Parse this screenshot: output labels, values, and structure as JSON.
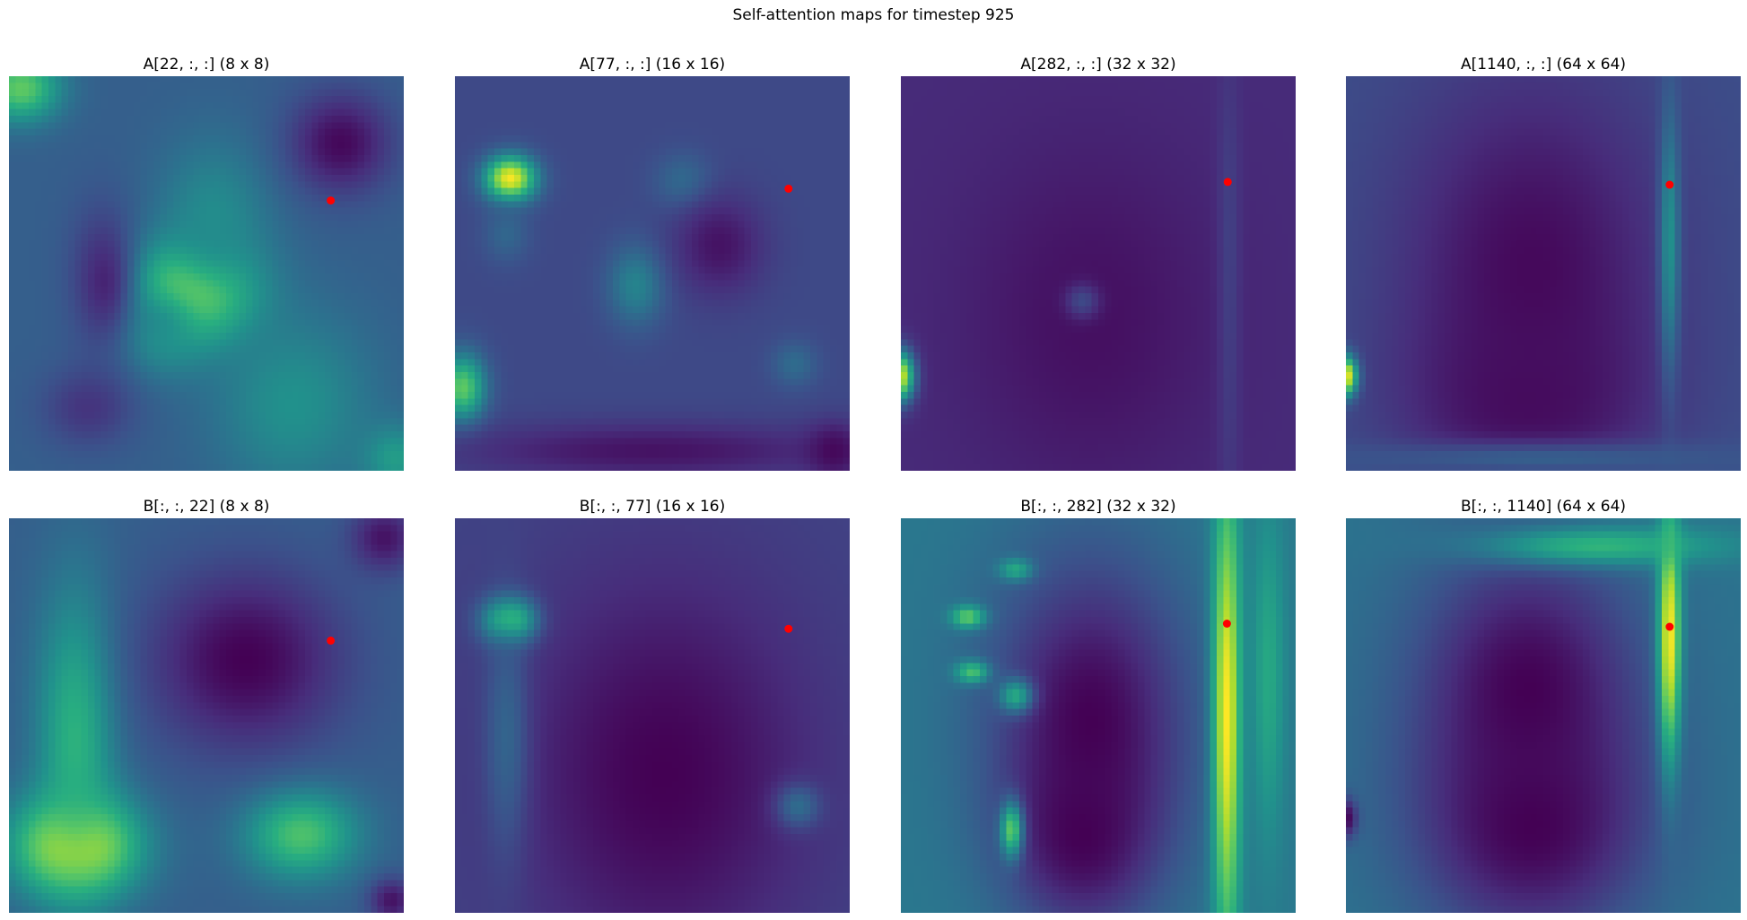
{
  "figure": {
    "suptitle": "Self-attention maps for timestep 925",
    "query_marker_color": "#ff0000",
    "colormap": "viridis",
    "colormap_stops": [
      "#440154",
      "#472d7b",
      "#3b528b",
      "#2c728e",
      "#21918c",
      "#28ae80",
      "#5ec962",
      "#addc30",
      "#fde725"
    ],
    "axes_visible": false
  },
  "chart_data": [
    {
      "type": "heatmap",
      "title": "A[22, :, :] (8 x 8)",
      "grid_size": [
        8,
        8
      ],
      "query_point": [
        0.815,
        0.315
      ],
      "background": 0.3,
      "blobs": [
        {
          "x": 0.46,
          "y": 0.55,
          "rx": 0.11,
          "ry": 0.09,
          "v": 1.0
        },
        {
          "x": 0.52,
          "y": 0.36,
          "rx": 0.1,
          "ry": 0.14,
          "v": 0.48
        },
        {
          "x": 0.38,
          "y": 0.64,
          "rx": 0.08,
          "ry": 0.08,
          "v": 0.5
        },
        {
          "x": 0.72,
          "y": 0.83,
          "rx": 0.14,
          "ry": 0.16,
          "v": 0.5
        },
        {
          "x": 0.03,
          "y": 0.03,
          "rx": 0.07,
          "ry": 0.06,
          "v": 0.75
        },
        {
          "x": 0.98,
          "y": 0.97,
          "rx": 0.06,
          "ry": 0.06,
          "v": 0.55
        },
        {
          "x": 0.84,
          "y": 0.17,
          "rx": 0.09,
          "ry": 0.09,
          "v": 0.02
        },
        {
          "x": 0.24,
          "y": 0.52,
          "rx": 0.06,
          "ry": 0.13,
          "v": 0.1
        },
        {
          "x": 0.2,
          "y": 0.84,
          "rx": 0.08,
          "ry": 0.07,
          "v": 0.15
        }
      ]
    },
    {
      "type": "heatmap",
      "title": "A[77, :, :] (16 x 16)",
      "grid_size": [
        16,
        16
      ],
      "query_point": [
        0.845,
        0.285
      ],
      "background": 0.22,
      "blobs": [
        {
          "x": 0.14,
          "y": 0.26,
          "rx": 0.045,
          "ry": 0.04,
          "v": 1.0
        },
        {
          "x": 0.46,
          "y": 0.53,
          "rx": 0.05,
          "ry": 0.07,
          "v": 0.45
        },
        {
          "x": 0.02,
          "y": 0.79,
          "rx": 0.04,
          "ry": 0.06,
          "v": 0.75
        },
        {
          "x": 0.58,
          "y": 0.27,
          "rx": 0.05,
          "ry": 0.05,
          "v": 0.36
        },
        {
          "x": 0.13,
          "y": 0.4,
          "rx": 0.04,
          "ry": 0.05,
          "v": 0.33
        },
        {
          "x": 0.86,
          "y": 0.73,
          "rx": 0.04,
          "ry": 0.04,
          "v": 0.35
        },
        {
          "x": 0.67,
          "y": 0.43,
          "rx": 0.08,
          "ry": 0.09,
          "v": 0.05
        },
        {
          "x": 0.5,
          "y": 0.95,
          "rx": 0.35,
          "ry": 0.05,
          "v": 0.05
        },
        {
          "x": 0.96,
          "y": 0.95,
          "rx": 0.05,
          "ry": 0.05,
          "v": 0.02
        }
      ]
    },
    {
      "type": "heatmap",
      "title": "A[282, :, :] (32 x 32)",
      "grid_size": [
        32,
        32
      ],
      "query_point": [
        0.828,
        0.268
      ],
      "background": 0.12,
      "blobs": [
        {
          "x": 0.0,
          "y": 0.76,
          "rx": 0.025,
          "ry": 0.045,
          "v": 1.0
        },
        {
          "x": 0.83,
          "y": 0.55,
          "rx": 0.02,
          "ry": 0.35,
          "v": 0.24
        },
        {
          "x": 0.48,
          "y": 0.62,
          "rx": 0.22,
          "ry": 0.3,
          "v": 0.04
        },
        {
          "x": 0.46,
          "y": 0.57,
          "rx": 0.03,
          "ry": 0.03,
          "v": 0.22
        }
      ]
    },
    {
      "type": "heatmap",
      "title": "A[1140, :, :] (64 x 64)",
      "grid_size": [
        64,
        64
      ],
      "query_point": [
        0.82,
        0.275
      ],
      "background": 0.24,
      "blobs": [
        {
          "x": 0.47,
          "y": 0.5,
          "rx": 0.24,
          "ry": 0.36,
          "v": 0.02
        },
        {
          "x": 0.46,
          "y": 0.82,
          "rx": 0.2,
          "ry": 0.16,
          "v": 0.03
        },
        {
          "x": 0.82,
          "y": 0.42,
          "rx": 0.018,
          "ry": 0.24,
          "v": 0.5
        },
        {
          "x": 0.0,
          "y": 0.76,
          "rx": 0.02,
          "ry": 0.035,
          "v": 1.0
        },
        {
          "x": 0.5,
          "y": 0.97,
          "rx": 0.4,
          "ry": 0.03,
          "v": 0.3
        }
      ]
    },
    {
      "type": "heatmap",
      "title": "B[:, :, 22] (8 x 8)",
      "grid_size": [
        8,
        8
      ],
      "query_point": [
        0.815,
        0.31
      ],
      "background": 0.3,
      "blobs": [
        {
          "x": 0.17,
          "y": 0.83,
          "rx": 0.11,
          "ry": 0.09,
          "v": 1.0
        },
        {
          "x": 0.17,
          "y": 0.55,
          "rx": 0.07,
          "ry": 0.26,
          "v": 0.65
        },
        {
          "x": 0.74,
          "y": 0.8,
          "rx": 0.1,
          "ry": 0.08,
          "v": 0.72
        },
        {
          "x": 0.6,
          "y": 0.36,
          "rx": 0.17,
          "ry": 0.16,
          "v": 0.0
        },
        {
          "x": 0.95,
          "y": 0.05,
          "rx": 0.06,
          "ry": 0.06,
          "v": 0.05
        },
        {
          "x": 0.97,
          "y": 0.97,
          "rx": 0.04,
          "ry": 0.04,
          "v": 0.05
        }
      ]
    },
    {
      "type": "heatmap",
      "title": "B[:, :, 77] (16 x 16)",
      "grid_size": [
        16,
        16
      ],
      "query_point": [
        0.845,
        0.28
      ],
      "background": 0.2,
      "blobs": [
        {
          "x": 0.14,
          "y": 0.26,
          "rx": 0.045,
          "ry": 0.04,
          "v": 1.0
        },
        {
          "x": 0.53,
          "y": 0.65,
          "rx": 0.26,
          "ry": 0.35,
          "v": 0.0
        },
        {
          "x": 0.13,
          "y": 0.55,
          "rx": 0.04,
          "ry": 0.22,
          "v": 0.32
        },
        {
          "x": 0.87,
          "y": 0.73,
          "rx": 0.04,
          "ry": 0.04,
          "v": 0.35
        }
      ]
    },
    {
      "type": "heatmap",
      "title": "B[:, :, 282] (32 x 32)",
      "grid_size": [
        32,
        32
      ],
      "query_point": [
        0.826,
        0.267
      ],
      "background": 0.4,
      "blobs": [
        {
          "x": 0.48,
          "y": 0.52,
          "rx": 0.18,
          "ry": 0.3,
          "v": 0.0
        },
        {
          "x": 0.46,
          "y": 0.8,
          "rx": 0.12,
          "ry": 0.15,
          "v": 0.0
        },
        {
          "x": 0.826,
          "y": 0.5,
          "rx": 0.025,
          "ry": 0.42,
          "v": 1.0
        },
        {
          "x": 0.93,
          "y": 0.4,
          "rx": 0.03,
          "ry": 0.3,
          "v": 0.6
        },
        {
          "x": 0.17,
          "y": 0.25,
          "rx": 0.03,
          "ry": 0.02,
          "v": 0.75
        },
        {
          "x": 0.18,
          "y": 0.39,
          "rx": 0.03,
          "ry": 0.02,
          "v": 0.7
        },
        {
          "x": 0.29,
          "y": 0.45,
          "rx": 0.03,
          "ry": 0.03,
          "v": 0.6
        },
        {
          "x": 0.29,
          "y": 0.13,
          "rx": 0.03,
          "ry": 0.02,
          "v": 0.6
        },
        {
          "x": 0.28,
          "y": 0.79,
          "rx": 0.02,
          "ry": 0.05,
          "v": 0.75
        }
      ]
    },
    {
      "type": "heatmap",
      "title": "B[:, :, 1140] (64 x 64)",
      "grid_size": [
        64,
        64
      ],
      "query_point": [
        0.82,
        0.275
      ],
      "background": 0.38,
      "blobs": [
        {
          "x": 0.46,
          "y": 0.44,
          "rx": 0.2,
          "ry": 0.26,
          "v": 0.0
        },
        {
          "x": 0.47,
          "y": 0.78,
          "rx": 0.2,
          "ry": 0.2,
          "v": 0.0
        },
        {
          "x": 0.82,
          "y": 0.3,
          "rx": 0.02,
          "ry": 0.22,
          "v": 1.0
        },
        {
          "x": 0.65,
          "y": 0.07,
          "rx": 0.22,
          "ry": 0.035,
          "v": 0.65
        },
        {
          "x": 0.0,
          "y": 0.76,
          "rx": 0.02,
          "ry": 0.035,
          "v": 0.0
        }
      ]
    }
  ]
}
